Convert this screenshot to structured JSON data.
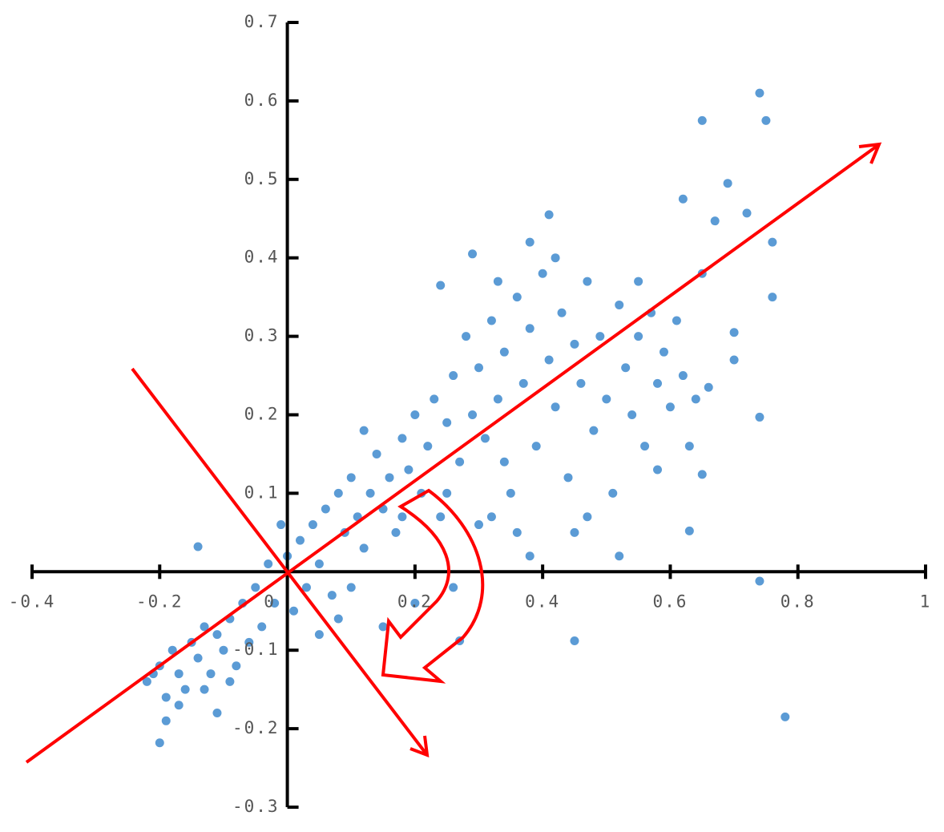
{
  "chart_data": {
    "type": "scatter",
    "xlim": [
      -0.4,
      1
    ],
    "ylim": [
      -0.3,
      0.7
    ],
    "xticks": [
      -0.4,
      -0.2,
      0,
      0.2,
      0.4,
      0.6,
      0.8,
      1
    ],
    "yticks": [
      -0.3,
      -0.2,
      -0.1,
      0.1,
      0.2,
      0.3,
      0.4,
      0.5,
      0.6,
      0.7
    ],
    "x": [
      0.74,
      0.65,
      0.75,
      0.69,
      0.62,
      0.72,
      0.67,
      0.41,
      0.78,
      0.45,
      0.27,
      0.74,
      0.63,
      0.76,
      0.76,
      0.74,
      0.7,
      0.7,
      0.65,
      0.66,
      0.65,
      0.29,
      0.24,
      0.38,
      -0.2,
      -0.14,
      -0.19,
      -0.22,
      -0.2,
      -0.18,
      -0.17,
      -0.15,
      -0.16,
      -0.14,
      -0.13,
      -0.12,
      -0.11,
      -0.1,
      -0.09,
      -0.08,
      -0.07,
      -0.06,
      -0.05,
      -0.04,
      -0.19,
      -0.21,
      -0.17,
      -0.13,
      -0.11,
      -0.09,
      -0.03,
      -0.02,
      0.0,
      0.01,
      0.02,
      0.03,
      0.04,
      0.05,
      0.06,
      0.07,
      0.08,
      0.09,
      0.1,
      0.11,
      0.12,
      0.13,
      0.14,
      0.15,
      0.16,
      0.17,
      0.18,
      0.19,
      0.2,
      0.21,
      0.22,
      0.23,
      0.24,
      0.25,
      0.26,
      0.27,
      0.28,
      0.29,
      0.3,
      0.31,
      0.32,
      0.33,
      0.34,
      0.35,
      0.36,
      0.37,
      0.38,
      0.39,
      0.4,
      0.41,
      0.42,
      0.43,
      0.44,
      0.45,
      0.46,
      0.47,
      0.48,
      0.49,
      0.5,
      0.51,
      0.52,
      0.53,
      0.54,
      0.55,
      0.56,
      0.57,
      0.58,
      0.59,
      0.6,
      0.61,
      0.62,
      0.63,
      0.64,
      0.55,
      0.45,
      0.38,
      0.3,
      0.2,
      0.15,
      0.1,
      0.33,
      0.42,
      0.36,
      0.26,
      0.05,
      -0.01,
      0.08,
      0.18,
      0.12,
      0.34,
      0.47,
      0.52,
      0.58,
      0.25,
      0.32
    ],
    "series": [
      {
        "color": "#5b9bd5",
        "values": [
          0.61,
          0.575,
          0.575,
          0.495,
          0.475,
          0.457,
          0.447,
          0.455,
          -0.185,
          -0.088,
          -0.088,
          -0.012,
          0.052,
          0.35,
          0.42,
          0.197,
          0.305,
          0.27,
          0.124,
          0.235,
          0.38,
          0.405,
          0.365,
          0.42,
          -0.218,
          0.032,
          -0.19,
          -0.14,
          -0.12,
          -0.1,
          -0.13,
          -0.09,
          -0.15,
          -0.11,
          -0.07,
          -0.13,
          -0.08,
          -0.1,
          -0.06,
          -0.12,
          -0.04,
          -0.09,
          -0.02,
          -0.07,
          -0.16,
          -0.13,
          -0.17,
          -0.15,
          -0.18,
          -0.14,
          0.01,
          -0.04,
          0.02,
          -0.05,
          0.04,
          -0.02,
          0.06,
          0.01,
          0.08,
          -0.03,
          0.1,
          0.05,
          0.12,
          0.07,
          0.03,
          0.1,
          0.15,
          0.08,
          0.12,
          0.05,
          0.17,
          0.13,
          0.2,
          0.1,
          0.16,
          0.22,
          0.07,
          0.19,
          0.25,
          0.14,
          0.3,
          0.2,
          0.26,
          0.17,
          0.32,
          0.22,
          0.28,
          0.1,
          0.35,
          0.24,
          0.31,
          0.16,
          0.38,
          0.27,
          0.21,
          0.33,
          0.12,
          0.29,
          0.24,
          0.37,
          0.18,
          0.3,
          0.22,
          0.1,
          0.34,
          0.26,
          0.2,
          0.3,
          0.16,
          0.33,
          0.24,
          0.28,
          0.21,
          0.32,
          0.25,
          0.16,
          0.22,
          0.37,
          0.05,
          0.02,
          0.06,
          -0.04,
          -0.07,
          -0.02,
          0.37,
          0.4,
          0.05,
          -0.02,
          -0.08,
          0.06,
          -0.06,
          0.07,
          0.18,
          0.14,
          0.07,
          0.02,
          0.13,
          0.1,
          0.07
        ]
      }
    ]
  }
}
